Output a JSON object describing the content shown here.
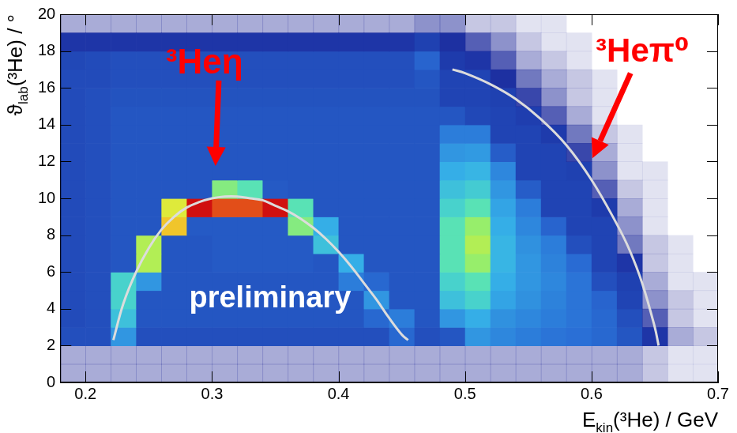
{
  "chart_data": {
    "type": "heatmap",
    "x_label": {
      "text": "E",
      "sub": "kin",
      "after": "(³He) / GeV"
    },
    "y_label": {
      "text": "ϑ",
      "sub": "lab",
      "after": "(³He) / °"
    },
    "xlim": [
      0.18,
      0.7
    ],
    "ylim": [
      0,
      20
    ],
    "xticks": [
      0.2,
      0.3,
      0.4,
      0.5,
      0.6,
      0.7
    ],
    "yticks": [
      0,
      2,
      4,
      6,
      8,
      10,
      12,
      14,
      16,
      18,
      20
    ],
    "grid": false,
    "x_bins": [
      0.18,
      0.2,
      0.22,
      0.24,
      0.26,
      0.28,
      0.3,
      0.32,
      0.34,
      0.36,
      0.38,
      0.4,
      0.42,
      0.44,
      0.46,
      0.48,
      0.5,
      0.52,
      0.54,
      0.56,
      0.58,
      0.6,
      0.62,
      0.64,
      0.66,
      0.68,
      0.7
    ],
    "y_bins": [
      0,
      1,
      2,
      3,
      4,
      5,
      6,
      7,
      8,
      9,
      10,
      11,
      12,
      13,
      14,
      15,
      16,
      17,
      18,
      19,
      20
    ],
    "counts": [
      [
        3,
        3,
        3,
        3,
        3,
        3,
        3,
        3,
        3,
        3,
        3,
        3,
        3,
        3,
        3,
        3,
        3,
        3,
        3,
        3,
        3,
        3,
        3,
        2,
        1,
        1
      ],
      [
        3,
        3,
        3,
        3,
        3,
        3,
        3,
        3,
        3,
        3,
        3,
        3,
        3,
        3,
        3,
        3,
        3,
        3,
        3,
        3,
        3,
        3,
        3,
        2,
        1,
        1
      ],
      [
        18,
        18,
        35,
        18,
        18,
        18,
        18,
        18,
        18,
        18,
        18,
        18,
        18,
        25,
        18,
        20,
        35,
        32,
        30,
        28,
        27,
        25,
        20,
        10,
        3,
        2
      ],
      [
        17,
        18,
        45,
        20,
        20,
        20,
        20,
        20,
        20,
        20,
        20,
        20,
        25,
        30,
        20,
        35,
        40,
        34,
        32,
        30,
        28,
        25,
        18,
        6,
        2,
        1
      ],
      [
        17,
        18,
        50,
        20,
        20,
        20,
        20,
        20,
        20,
        20,
        20,
        20,
        35,
        20,
        20,
        45,
        50,
        38,
        34,
        31,
        28,
        24,
        15,
        4,
        2,
        1
      ],
      [
        17,
        18,
        50,
        35,
        20,
        20,
        20,
        20,
        20,
        20,
        20,
        30,
        25,
        20,
        20,
        50,
        55,
        40,
        35,
        32,
        28,
        18,
        14,
        3,
        1,
        1
      ],
      [
        17,
        18,
        20,
        65,
        20,
        20,
        21,
        21,
        21,
        21,
        20,
        40,
        20,
        20,
        20,
        55,
        62,
        42,
        35,
        31,
        26,
        15,
        10,
        2,
        1,
        0
      ],
      [
        17,
        18,
        20,
        65,
        20,
        20,
        21,
        21,
        21,
        21,
        45,
        20,
        20,
        20,
        20,
        55,
        65,
        42,
        34,
        30,
        18,
        15,
        5,
        2,
        1,
        0
      ],
      [
        17,
        18,
        20,
        20,
        75,
        21,
        21,
        21,
        21,
        60,
        40,
        20,
        20,
        20,
        20,
        55,
        62,
        40,
        32,
        24,
        15,
        15,
        4,
        1,
        0,
        0
      ],
      [
        17,
        18,
        20,
        20,
        70,
        90,
        85,
        85,
        90,
        55,
        20,
        20,
        20,
        20,
        20,
        50,
        55,
        38,
        30,
        15,
        15,
        12,
        3,
        1,
        0,
        0
      ],
      [
        17,
        18,
        20,
        20,
        20,
        20,
        60,
        55,
        21,
        20,
        20,
        20,
        20,
        20,
        20,
        45,
        48,
        35,
        22,
        15,
        15,
        6,
        2,
        1,
        0,
        0
      ],
      [
        17,
        18,
        20,
        20,
        20,
        20,
        20,
        20,
        20,
        20,
        20,
        20,
        20,
        20,
        20,
        40,
        42,
        32,
        15,
        15,
        14,
        4,
        1,
        1,
        0,
        0
      ],
      [
        17,
        18,
        20,
        20,
        20,
        20,
        20,
        20,
        20,
        20,
        20,
        20,
        20,
        20,
        20,
        35,
        36,
        22,
        15,
        15,
        7,
        3,
        1,
        0,
        0,
        0
      ],
      [
        17,
        18,
        20,
        20,
        20,
        20,
        20,
        20,
        20,
        20,
        20,
        20,
        20,
        20,
        20,
        30,
        30,
        15,
        15,
        12,
        5,
        2,
        1,
        0,
        0,
        0
      ],
      [
        17,
        18,
        20,
        20,
        20,
        20,
        20,
        20,
        20,
        20,
        20,
        20,
        20,
        20,
        20,
        20,
        16,
        15,
        13,
        6,
        3,
        1,
        0,
        0,
        0,
        0
      ],
      [
        17,
        18,
        19,
        19,
        19,
        19,
        19,
        19,
        19,
        19,
        19,
        19,
        19,
        19,
        19,
        15,
        15,
        14,
        7,
        4,
        2,
        1,
        0,
        0,
        0,
        0
      ],
      [
        17,
        17,
        18,
        18,
        18,
        18,
        18,
        18,
        18,
        18,
        18,
        18,
        18,
        18,
        20,
        15,
        15,
        8,
        5,
        3,
        2,
        1,
        0,
        0,
        0,
        0
      ],
      [
        16,
        17,
        18,
        18,
        18,
        18,
        18,
        18,
        18,
        18,
        18,
        18,
        18,
        18,
        24,
        12,
        10,
        6,
        3,
        2,
        1,
        0,
        0,
        0,
        0,
        0
      ],
      [
        10,
        10,
        10,
        10,
        10,
        10,
        10,
        10,
        10,
        10,
        10,
        10,
        10,
        10,
        14,
        8,
        6,
        4,
        2,
        1,
        1,
        0,
        0,
        0,
        0,
        0
      ],
      [
        3,
        3,
        3,
        3,
        3,
        3,
        3,
        3,
        3,
        3,
        3,
        3,
        3,
        3,
        4,
        4,
        2,
        2,
        1,
        1,
        0,
        0,
        0,
        0,
        0,
        0
      ]
    ],
    "curves": [
      {
        "color": "#dcdcdc",
        "x": [
          0.222,
          0.23,
          0.24,
          0.25,
          0.26,
          0.27,
          0.28,
          0.29,
          0.3,
          0.31,
          0.32,
          0.33,
          0.34,
          0.35,
          0.36,
          0.37,
          0.38,
          0.39,
          0.4,
          0.41,
          0.42,
          0.43,
          0.44,
          0.45,
          0.455
        ],
        "y": [
          2.3,
          4.3,
          6.0,
          7.3,
          8.3,
          9.0,
          9.5,
          9.8,
          10.0,
          10.1,
          10.1,
          10.0,
          9.9,
          9.6,
          9.3,
          8.9,
          8.4,
          7.8,
          7.1,
          6.3,
          5.4,
          4.5,
          3.5,
          2.6,
          2.3
        ]
      },
      {
        "color": "#dcdcdc",
        "x": [
          0.49,
          0.5,
          0.52,
          0.54,
          0.56,
          0.58,
          0.6,
          0.62,
          0.63,
          0.64,
          0.65,
          0.653
        ],
        "y": [
          17.0,
          16.8,
          16.2,
          15.4,
          14.3,
          12.9,
          11.0,
          8.6,
          7.2,
          5.4,
          3.0,
          2.0
        ]
      }
    ],
    "annotations": [
      {
        "text": "³Heη",
        "color": "#ff0000"
      },
      {
        "text": "³Heπ⁰",
        "color": "#ff0000"
      },
      {
        "text": "preliminary",
        "color": "#ffffff"
      }
    ]
  }
}
